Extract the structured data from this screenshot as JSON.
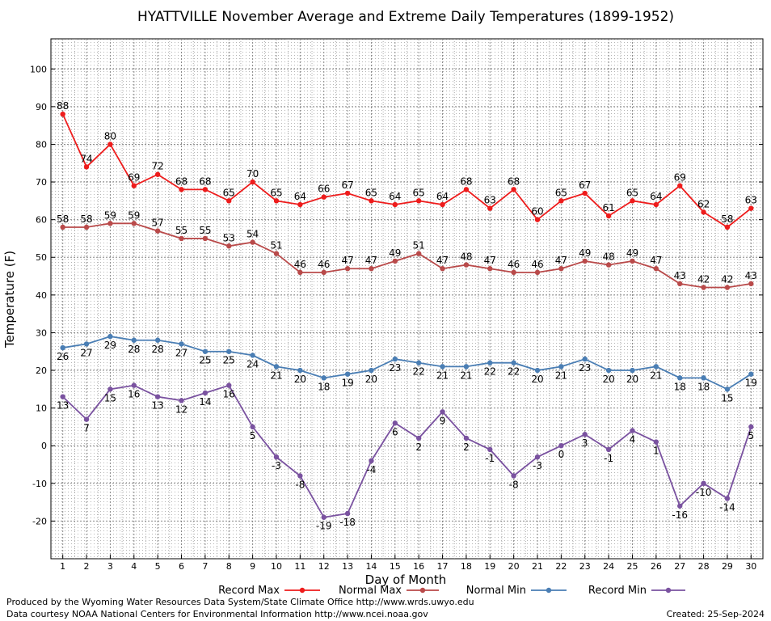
{
  "chart_data": {
    "type": "line",
    "title": "HYATTVILLE November Average and Extreme Daily Temperatures (1899-1952)",
    "xlabel": "Day of Month",
    "ylabel": "Temperature (F)",
    "x": [
      1,
      2,
      3,
      4,
      5,
      6,
      7,
      8,
      9,
      10,
      11,
      12,
      13,
      14,
      15,
      16,
      17,
      18,
      19,
      20,
      21,
      22,
      23,
      24,
      25,
      26,
      27,
      28,
      29,
      30
    ],
    "xlim": [
      0.5,
      30.5
    ],
    "ylim": [
      -30,
      108
    ],
    "yticks": [
      -20,
      -10,
      0,
      10,
      20,
      30,
      40,
      50,
      60,
      70,
      80,
      90,
      100
    ],
    "grid": true,
    "legend_position": "bottom",
    "series": [
      {
        "name": "Record Max",
        "color": "#ee1c1c",
        "label_position": "above",
        "values": [
          88,
          74,
          80,
          69,
          72,
          68,
          68,
          65,
          70,
          65,
          64,
          66,
          67,
          65,
          64,
          65,
          64,
          68,
          63,
          68,
          60,
          65,
          67,
          61,
          65,
          64,
          69,
          62,
          58,
          63
        ]
      },
      {
        "name": "Normal Max",
        "color": "#b94a4a",
        "label_position": "above",
        "values": [
          58,
          58,
          59,
          59,
          57,
          55,
          55,
          53,
          54,
          51,
          46,
          46,
          47,
          47,
          49,
          51,
          47,
          48,
          47,
          46,
          46,
          47,
          49,
          48,
          49,
          47,
          43,
          42,
          42,
          43
        ]
      },
      {
        "name": "Normal Min",
        "color": "#4a7eb4",
        "label_position": "below",
        "values": [
          26,
          27,
          29,
          28,
          28,
          27,
          25,
          25,
          24,
          21,
          20,
          18,
          19,
          20,
          23,
          22,
          21,
          21,
          22,
          22,
          20,
          21,
          23,
          20,
          20,
          21,
          18,
          18,
          15,
          19
        ]
      },
      {
        "name": "Record Min",
        "color": "#7a52a0",
        "label_position": "below",
        "values": [
          13,
          7,
          15,
          16,
          13,
          12,
          14,
          16,
          5,
          -3,
          -8,
          -19,
          -18,
          -4,
          6,
          2,
          9,
          2,
          -1,
          -8,
          -3,
          0,
          3,
          -1,
          4,
          1,
          -16,
          -10,
          -14,
          5
        ]
      }
    ]
  },
  "footer": {
    "produced_by": "Produced by the Wyoming Water Resources Data System/State Climate Office http://www.wrds.uwyo.edu",
    "data_courtesy": "Data courtesy NOAA National Centers for Environmental Information http://www.ncei.noaa.gov",
    "created": "Created:  25-Sep-2024"
  }
}
